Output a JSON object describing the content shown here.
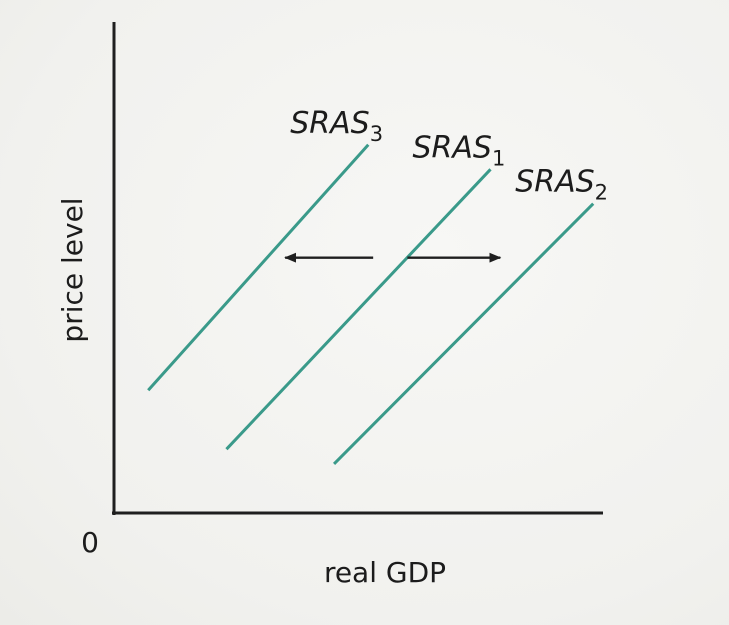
{
  "chart_data": {
    "type": "line",
    "title": "",
    "xlabel": "real GDP",
    "ylabel": "price level",
    "origin_label": "0",
    "xlim": [
      0,
      10
    ],
    "ylim": [
      0,
      10
    ],
    "grid": false,
    "legend": "none",
    "series": [
      {
        "key": "sras3",
        "label_main": "SRAS",
        "label_sub": "3",
        "color": "#3a9a8a",
        "x": [
          0.7,
          5.2
        ],
        "y": [
          2.5,
          7.5
        ]
      },
      {
        "key": "sras1",
        "label_main": "SRAS",
        "label_sub": "1",
        "color": "#3a9a8a",
        "x": [
          2.3,
          7.7
        ],
        "y": [
          1.3,
          7.0
        ]
      },
      {
        "key": "sras2",
        "label_main": "SRAS",
        "label_sub": "2",
        "color": "#3a9a8a",
        "x": [
          4.5,
          9.8
        ],
        "y": [
          1.0,
          6.3
        ]
      }
    ],
    "arrows": [
      {
        "direction": "left",
        "from": [
          5.3,
          5.2
        ],
        "to": [
          3.5,
          5.2
        ]
      },
      {
        "direction": "right",
        "from": [
          6.0,
          5.2
        ],
        "to": [
          7.9,
          5.2
        ]
      }
    ],
    "colors": {
      "axis": "#1f1f1f",
      "curve": "#3a9a8a",
      "arrow": "#1f1f1f"
    }
  }
}
